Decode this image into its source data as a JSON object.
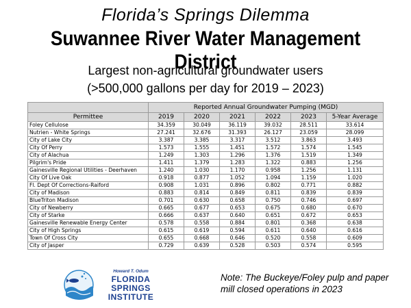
{
  "header": {
    "title_italic": "Florida’s Springs Dilemma",
    "title_bold": "Suwannee River Water Management District",
    "subtitle_line1": "Largest non-agricultural groundwater users",
    "subtitle_line2": "(>500,000 gallons per day for 2019 – 2023)"
  },
  "table": {
    "group_header": "Reported Annual Groundwater Pumping (MGD)",
    "columns": [
      "Permittee",
      "2019",
      "2020",
      "2021",
      "2022",
      "2023",
      "5-Year Average"
    ],
    "rows": [
      [
        "Foley Cellulose",
        "34.359",
        "30.049",
        "36.119",
        "39.032",
        "28.511",
        "33.614"
      ],
      [
        "Nutrien - White Springs",
        "27.241",
        "32.676",
        "31.393",
        "26.127",
        "23.059",
        "28.099"
      ],
      [
        "City of Lake City",
        "3.387",
        "3.385",
        "3.317",
        "3.512",
        "3.863",
        "3.493"
      ],
      [
        "City Of Perry",
        "1.573",
        "1.555",
        "1.451",
        "1.572",
        "1.574",
        "1.545"
      ],
      [
        "City of Alachua",
        "1.249",
        "1.303",
        "1.296",
        "1.376",
        "1.519",
        "1.349"
      ],
      [
        "Pilgrim's Pride",
        "1.411",
        "1.379",
        "1.283",
        "1.322",
        "0.883",
        "1.256"
      ],
      [
        "Gainesville Regional Utilities - Deerhaven",
        "1.240",
        "1.030",
        "1.170",
        "0.958",
        "1.256",
        "1.131"
      ],
      [
        "City Of Live Oak",
        "0.918",
        "0.877",
        "1.052",
        "1.094",
        "1.159",
        "1.020"
      ],
      [
        "Fl. Dept Of Corrections-Raiford",
        "0.908",
        "1.031",
        "0.896",
        "0.802",
        "0.771",
        "0.882"
      ],
      [
        "City of Madison",
        "0.883",
        "0.814",
        "0.849",
        "0.811",
        "0.839",
        "0.839"
      ],
      [
        "BlueTriton Madison",
        "0.701",
        "0.630",
        "0.658",
        "0.750",
        "0.746",
        "0.697"
      ],
      [
        "City of Newberry",
        "0.665",
        "0.677",
        "0.653",
        "0.675",
        "0.680",
        "0.670"
      ],
      [
        "City of Starke",
        "0.666",
        "0.637",
        "0.640",
        "0.651",
        "0.672",
        "0.653"
      ],
      [
        "Gainesville Renewable Energy Center",
        "0.578",
        "0.558",
        "0.884",
        "0.801",
        "0.368",
        "0.638"
      ],
      [
        "City of High Springs",
        "0.615",
        "0.619",
        "0.594",
        "0.611",
        "0.640",
        "0.616"
      ],
      [
        "Town Of Cross City",
        "0.655",
        "0.668",
        "0.646",
        "0.520",
        "0.558",
        "0.609"
      ],
      [
        "City of Jasper",
        "0.729",
        "0.639",
        "0.528",
        "0.503",
        "0.574",
        "0.595"
      ]
    ]
  },
  "logo": {
    "small_text": "Howard T. Odum",
    "line1": "FLORIDA",
    "line2": "SPRINGS",
    "line3": "INSTITUTE",
    "primary_color": "#1b3f8f",
    "water_color": "#2e86c9"
  },
  "note": "Note: The Buckeye/Foley pulp and paper mill closed operations in 2023"
}
